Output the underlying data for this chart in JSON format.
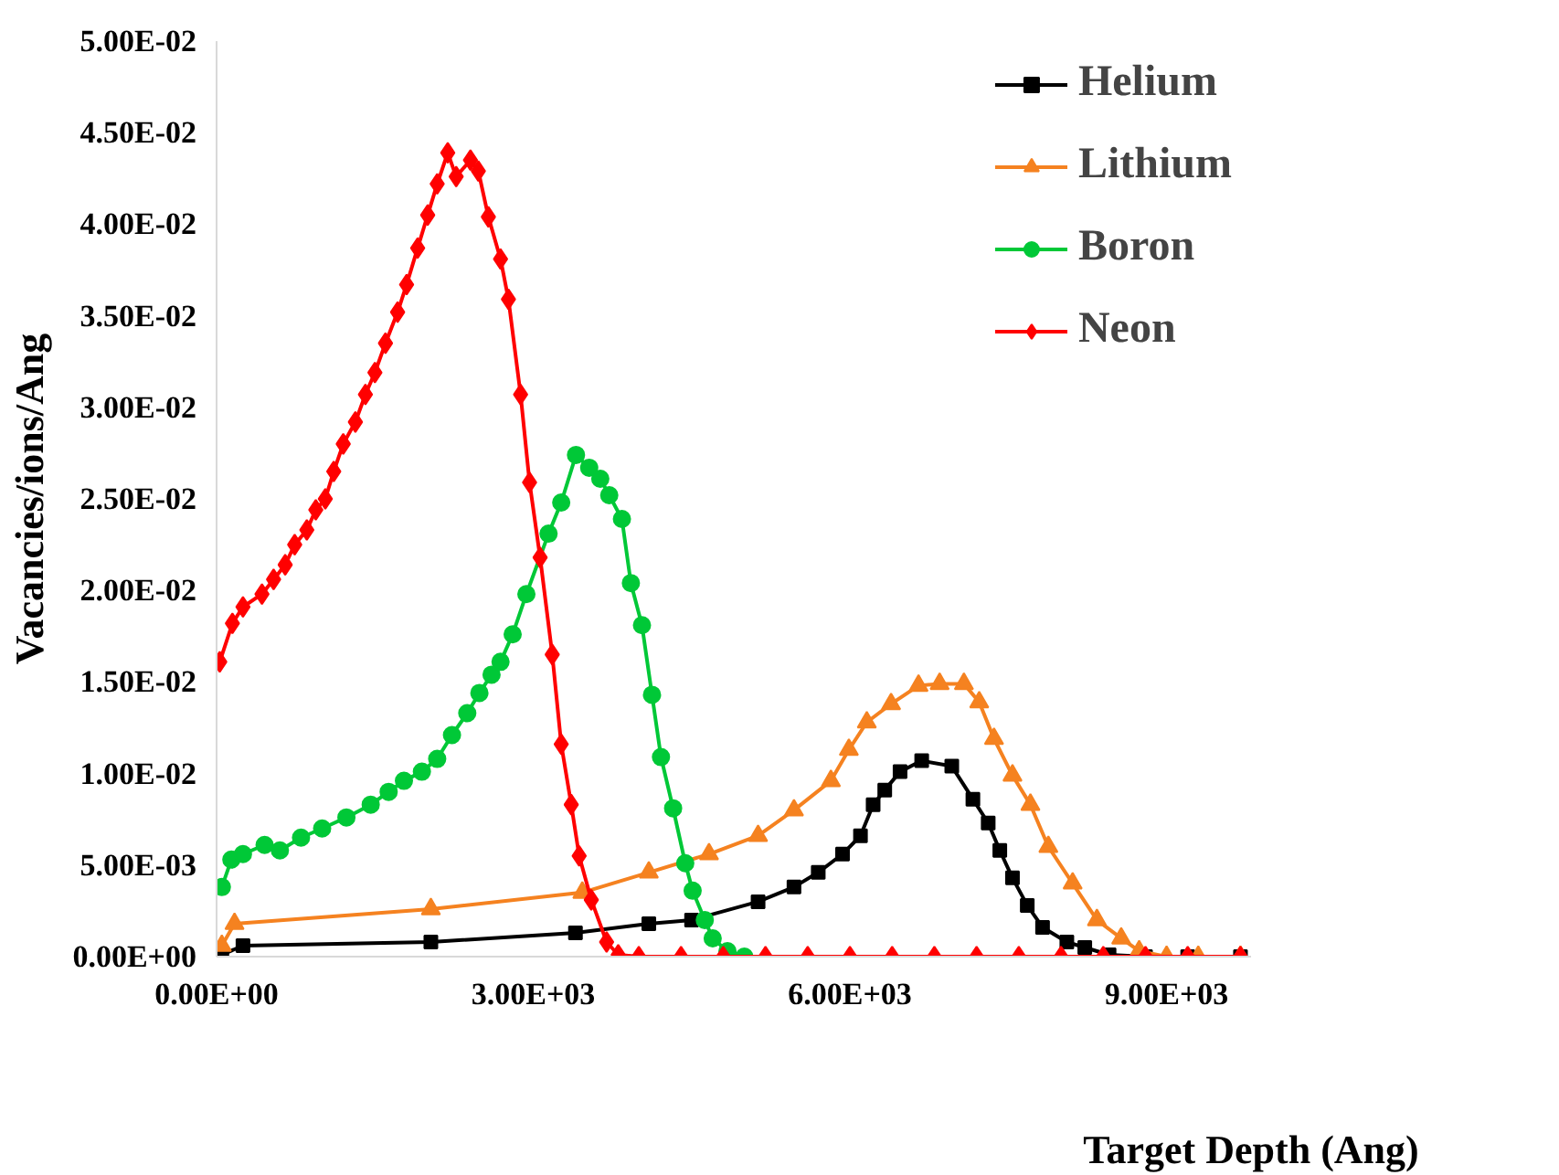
{
  "chart_data": {
    "type": "line",
    "xlabel": "Target Depth (Ang)",
    "ylabel": "Vacancies/ions/Ang",
    "xlim": [
      0,
      9800
    ],
    "ylim": [
      0,
      0.05
    ],
    "xticks": [
      {
        "value": 0,
        "label": "0.00E+00"
      },
      {
        "value": 3000,
        "label": "3.00E+03"
      },
      {
        "value": 6000,
        "label": "6.00E+03"
      },
      {
        "value": 9000,
        "label": "9.00E+03"
      }
    ],
    "yticks": [
      {
        "value": 0,
        "label": "0.00E+00"
      },
      {
        "value": 0.005,
        "label": "5.00E-03"
      },
      {
        "value": 0.01,
        "label": "1.00E-02"
      },
      {
        "value": 0.015,
        "label": "1.50E-02"
      },
      {
        "value": 0.02,
        "label": "2.00E-02"
      },
      {
        "value": 0.025,
        "label": "2.50E-02"
      },
      {
        "value": 0.03,
        "label": "3.00E-02"
      },
      {
        "value": 0.035,
        "label": "3.50E-02"
      },
      {
        "value": 0.04,
        "label": "4.00E-02"
      },
      {
        "value": 0.045,
        "label": "4.50E-02"
      },
      {
        "value": 0.05,
        "label": "5.00E-02"
      }
    ],
    "grid": false,
    "legend": "top right",
    "series": [
      {
        "name": "Helium",
        "color": "#000000",
        "marker": "square",
        "x": [
          50,
          250,
          2030,
          3400,
          4095,
          4500,
          5130,
          5470,
          5700,
          5930,
          6100,
          6220,
          6330,
          6475,
          6680,
          6965,
          7165,
          7310,
          7420,
          7540,
          7680,
          7825,
          8055,
          8225,
          8455,
          8800,
          9200,
          9700
        ],
        "values": [
          0.0001,
          0.0006,
          0.0008,
          0.0013,
          0.0018,
          0.002,
          0.003,
          0.0038,
          0.0046,
          0.0056,
          0.0066,
          0.0083,
          0.0091,
          0.0101,
          0.0107,
          0.0104,
          0.0086,
          0.0073,
          0.0058,
          0.0043,
          0.0028,
          0.0016,
          0.0008,
          0.0005,
          0.0001,
          0,
          0,
          0
        ]
      },
      {
        "name": "Lithium",
        "color": "#f58220",
        "marker": "triangle",
        "x": [
          50,
          170,
          2030,
          3465,
          4095,
          4665,
          5130,
          5470,
          5820,
          5990,
          6160,
          6390,
          6650,
          6850,
          7080,
          7225,
          7365,
          7540,
          7710,
          7880,
          8110,
          8340,
          8570,
          8740,
          9000,
          9300,
          9700
        ],
        "values": [
          0.0006,
          0.0018,
          0.0026,
          0.0035,
          0.0046,
          0.0056,
          0.0066,
          0.008,
          0.0096,
          0.0113,
          0.0128,
          0.0138,
          0.0148,
          0.0149,
          0.0149,
          0.0139,
          0.0119,
          0.0099,
          0.0083,
          0.006,
          0.004,
          0.002,
          0.001,
          0.0003,
          0,
          0,
          0
        ]
      },
      {
        "name": "Boron",
        "color": "#00c837",
        "marker": "circle",
        "x": [
          50,
          140,
          250,
          455,
          600,
          800,
          1000,
          1230,
          1460,
          1630,
          1775,
          1945,
          2090,
          2230,
          2375,
          2490,
          2605,
          2690,
          2805,
          2935,
          3145,
          3265,
          3405,
          3530,
          3635,
          3720,
          3840,
          3925,
          4030,
          4125,
          4210,
          4325,
          4440,
          4510,
          4625,
          4700,
          4840,
          5000
        ],
        "values": [
          0.0038,
          0.0053,
          0.0056,
          0.0061,
          0.0058,
          0.0065,
          0.007,
          0.0076,
          0.0083,
          0.009,
          0.0096,
          0.0101,
          0.0108,
          0.0121,
          0.0133,
          0.0144,
          0.0154,
          0.0161,
          0.0176,
          0.0198,
          0.0231,
          0.0248,
          0.0274,
          0.0267,
          0.0261,
          0.0252,
          0.0239,
          0.0204,
          0.0181,
          0.0143,
          0.0109,
          0.0081,
          0.0051,
          0.0036,
          0.002,
          0.001,
          0.0003,
          0
        ]
      },
      {
        "name": "Neon",
        "color": "#ff0000",
        "marker": "diamond",
        "x": [
          30,
          150,
          250,
          430,
          540,
          650,
          740,
          855,
          940,
          1030,
          1110,
          1200,
          1315,
          1410,
          1500,
          1600,
          1715,
          1800,
          1905,
          2000,
          2090,
          2190,
          2270,
          2405,
          2480,
          2575,
          2690,
          2765,
          2880,
          2965,
          3065,
          3180,
          3265,
          3360,
          3435,
          3550,
          3695,
          3805,
          4000,
          4400,
          4800,
          5200,
          5600,
          6000,
          6400,
          6800,
          7200,
          7600,
          8000,
          8400,
          8800,
          9200,
          9700
        ],
        "values": [
          0.0161,
          0.0182,
          0.0191,
          0.0198,
          0.0206,
          0.0214,
          0.0225,
          0.0233,
          0.0244,
          0.025,
          0.0265,
          0.028,
          0.0292,
          0.0307,
          0.0319,
          0.0335,
          0.0352,
          0.0367,
          0.0387,
          0.0405,
          0.0422,
          0.0439,
          0.0426,
          0.0435,
          0.0429,
          0.0404,
          0.0381,
          0.0359,
          0.0307,
          0.0259,
          0.0218,
          0.0165,
          0.0116,
          0.0083,
          0.0055,
          0.0031,
          0.0008,
          0.0001,
          0,
          0,
          0,
          0,
          0,
          0,
          0,
          0,
          0,
          0,
          0,
          0,
          0,
          0,
          0
        ]
      }
    ]
  }
}
